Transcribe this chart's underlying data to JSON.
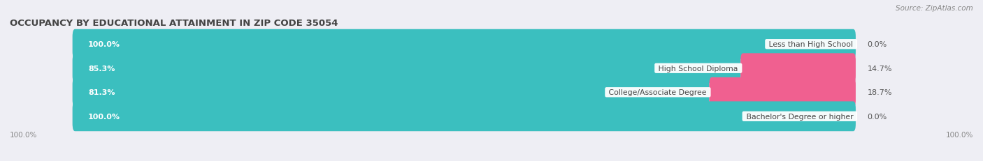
{
  "title": "OCCUPANCY BY EDUCATIONAL ATTAINMENT IN ZIP CODE 35054",
  "source": "Source: ZipAtlas.com",
  "categories": [
    "Less than High School",
    "High School Diploma",
    "College/Associate Degree",
    "Bachelor's Degree or higher"
  ],
  "owner_pct": [
    100.0,
    85.3,
    81.3,
    100.0
  ],
  "renter_pct": [
    0.0,
    14.7,
    18.7,
    0.0
  ],
  "owner_color": "#3BBFBF",
  "renter_color": "#F06090",
  "renter_color_light": "#F8AABA",
  "bg_color": "#EEEEF4",
  "bar_bg_color": "#DCDCE6",
  "title_fontsize": 9.5,
  "label_fontsize": 7.8,
  "pct_fontsize": 8.0,
  "source_fontsize": 7.5,
  "bar_height": 0.62,
  "xlim_left": -8,
  "xlim_right": 115,
  "bottom_labels": [
    "100.0%",
    "100.0%"
  ]
}
